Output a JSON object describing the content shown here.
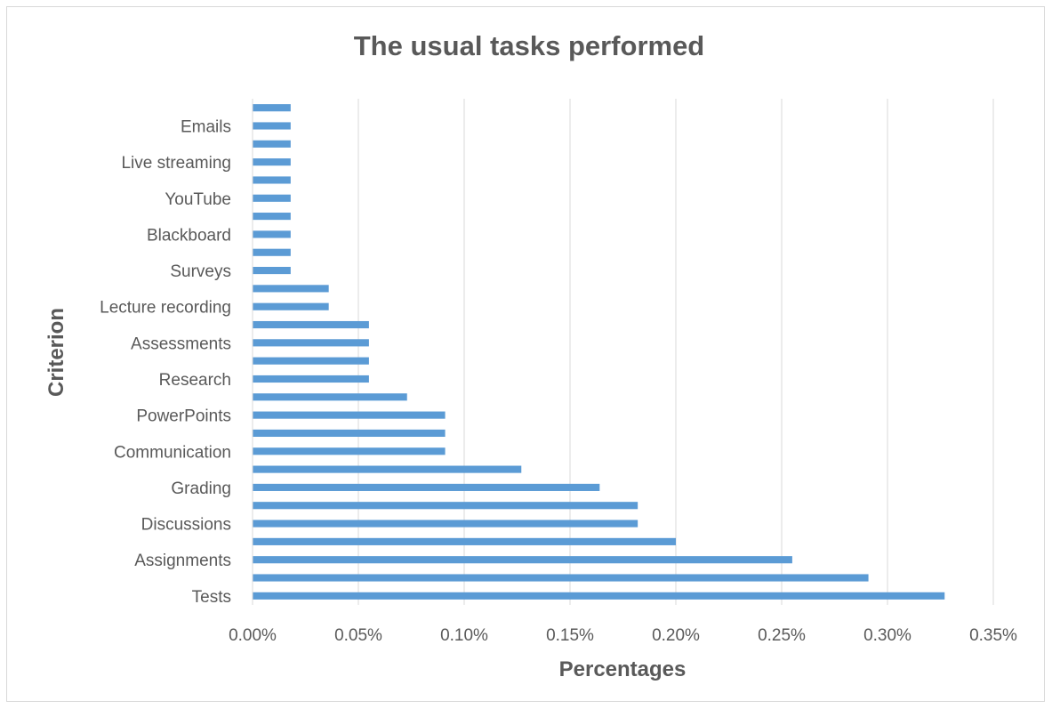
{
  "chart_data": {
    "type": "bar",
    "orientation": "horizontal",
    "title": "The usual tasks performed",
    "xlabel": "Percentages",
    "ylabel": "Criterion",
    "xlim": [
      0,
      0.35
    ],
    "x_ticks": [
      "0.00%",
      "0.05%",
      "0.10%",
      "0.15%",
      "0.20%",
      "0.25%",
      "0.30%",
      "0.35%"
    ],
    "grid": "vertical",
    "legend": "none",
    "bar_color": "#5b9bd5",
    "categories": [
      "Tests",
      "",
      "Assignments",
      "",
      "Discussions",
      "",
      "Grading",
      "",
      "Communication",
      "",
      "PowerPoints",
      "",
      "Research",
      "",
      "Assessments",
      "",
      "Lecture recording",
      "",
      "Surveys",
      "",
      "Blackboard",
      "",
      "YouTube",
      "",
      "Live streaming",
      "",
      "Emails",
      ""
    ],
    "values": [
      0.327,
      0.291,
      0.255,
      0.2,
      0.182,
      0.182,
      0.164,
      0.127,
      0.091,
      0.091,
      0.091,
      0.073,
      0.055,
      0.055,
      0.055,
      0.055,
      0.036,
      0.036,
      0.018,
      0.018,
      0.018,
      0.018,
      0.018,
      0.018,
      0.018,
      0.018,
      0.018,
      0.018
    ]
  }
}
